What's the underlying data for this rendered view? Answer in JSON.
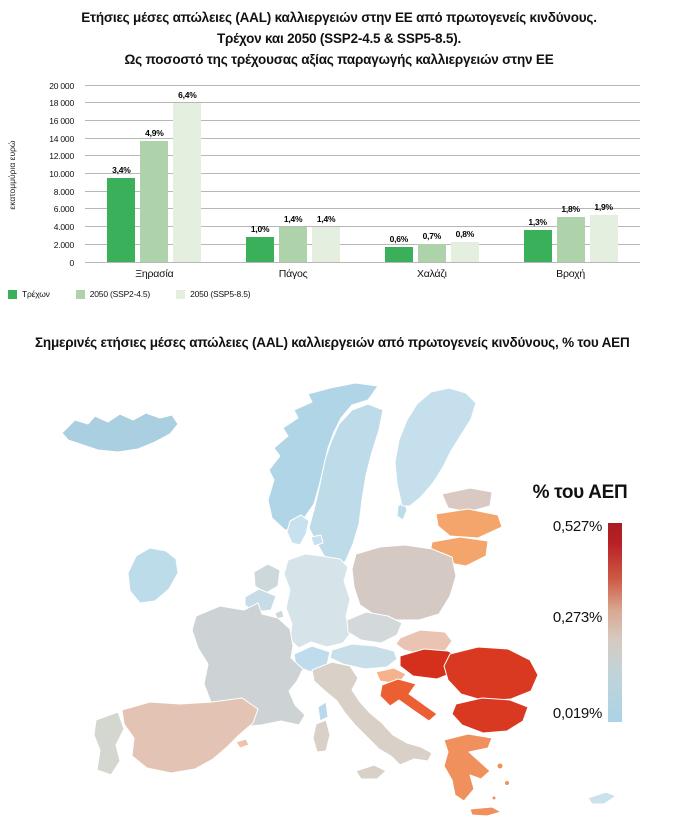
{
  "chart": {
    "title_line1": "Ετήσιες μέσες απώλειες (AAL) καλλιεργειών στην ΕΕ από πρωτογενείς κινδύνους.",
    "title_line2": "Τρέχον και 2050 (SSP2-4.5 & SSP5-8.5).",
    "title_line3": "Ως ποσοστό της τρέχουσας αξίας παραγωγής καλλιεργειών στην ΕΕ"
  },
  "chart_data": {
    "type": "bar",
    "title": "Ετήσιες μέσες απώλειες (AAL) καλλιεργειών στην ΕΕ από πρωτογενείς κινδύνους. Τρέχον και 2050 (SSP2-4.5 & SSP5-8.5). Ως ποσοστό της τρέχουσας αξίας παραγωγής καλλιεργειών στην ΕΕ",
    "categories": [
      "Ξηρασία",
      "Πάγος",
      "Χαλάζι",
      "Βροχή"
    ],
    "series": [
      {
        "name": "Τρέχων",
        "color": "#3bb05a",
        "values_meur": [
          9500,
          2800,
          1700,
          3650
        ],
        "bar_labels": [
          "3,4%",
          "1,0%",
          "0,6%",
          "1,3%"
        ]
      },
      {
        "name": "2050 (SSP2-4.5)",
        "color": "#aed3aa",
        "values_meur": [
          13700,
          3950,
          2000,
          5050
        ],
        "bar_labels": [
          "4,9%",
          "1,4%",
          "0,7%",
          "1,8%"
        ]
      },
      {
        "name": "2050 (SSP5-8.5)",
        "color": "#e4efe0",
        "values_meur": [
          18000,
          3950,
          2250,
          5300
        ],
        "bar_labels": [
          "6,4%",
          "1,4%",
          "0,8%",
          "1,9%"
        ]
      }
    ],
    "ylabel": "εκατομμύρια ευρώ",
    "ylim": [
      0,
      20000
    ],
    "ytick_labels": [
      "20 000",
      "18 000",
      "16 000",
      "14 000",
      "12.000",
      "10.000",
      "8.000",
      "6.000",
      "4.000",
      "2.000",
      "0"
    ],
    "grid": true,
    "legend_position": "bottom-left"
  },
  "map": {
    "title": "Σημερινές ετήσιες μέσες απώλειες (AAL) καλλιεργειών από πρωτογενείς κινδύνους, % του ΑΕΠ",
    "legend": {
      "title": "% του ΑΕΠ",
      "max_label": "0,527%",
      "mid_label": "0,273%",
      "min_label": "0,019%",
      "gradient_stops": [
        "#a81d22 0%",
        "#b92025 10%",
        "#cc5a44 28%",
        "#d9a891 44%",
        "#d7c9c0 58%",
        "#c3d3d8 74%",
        "#abd3e6 100%"
      ]
    },
    "countries": {
      "iceland": "#a9cfe0",
      "norway": "#b0d5e6",
      "sweden": "#bedbe9",
      "gotland": "#bedbe9",
      "finland": "#c5e0ec",
      "denmark": "#c8e1ee",
      "denmark_islands": "#c8e1ee",
      "ireland": "#bcdcea",
      "estonia": "#dac9c3",
      "latvia": "#f4a56c",
      "lithuania": "#f4a56c",
      "poland": "#d5c9c4",
      "germany": "#d6e4ea",
      "netherlands": "#ccd8dc",
      "belgium": "#c7dce6",
      "luxembourg": "#cdd8dc",
      "czechia": "#d3d8da",
      "slovakia": "#eac3b2",
      "austria": "#c8dfe9",
      "switzerland": "#bfdcec",
      "france": "#cdd3d5",
      "corsica": "#b9d8ea",
      "italy": "#d9d0c7",
      "sardinia": "#d9d0c7",
      "sicily": "#d9d0c7",
      "spain": "#e3c4b4",
      "balearic_islands": "#efc3ab",
      "portugal": "#d4d6d0",
      "hungary": "#d5301c",
      "slovenia": "#f6b28d",
      "croatia": "#ec5f33",
      "romania": "#d93821",
      "bulgaria": "#d93821",
      "greece": "#f0905d",
      "crete": "#f0905d",
      "greek_islands": "#f0905d",
      "cyprus": "#c9e2ee"
    }
  }
}
